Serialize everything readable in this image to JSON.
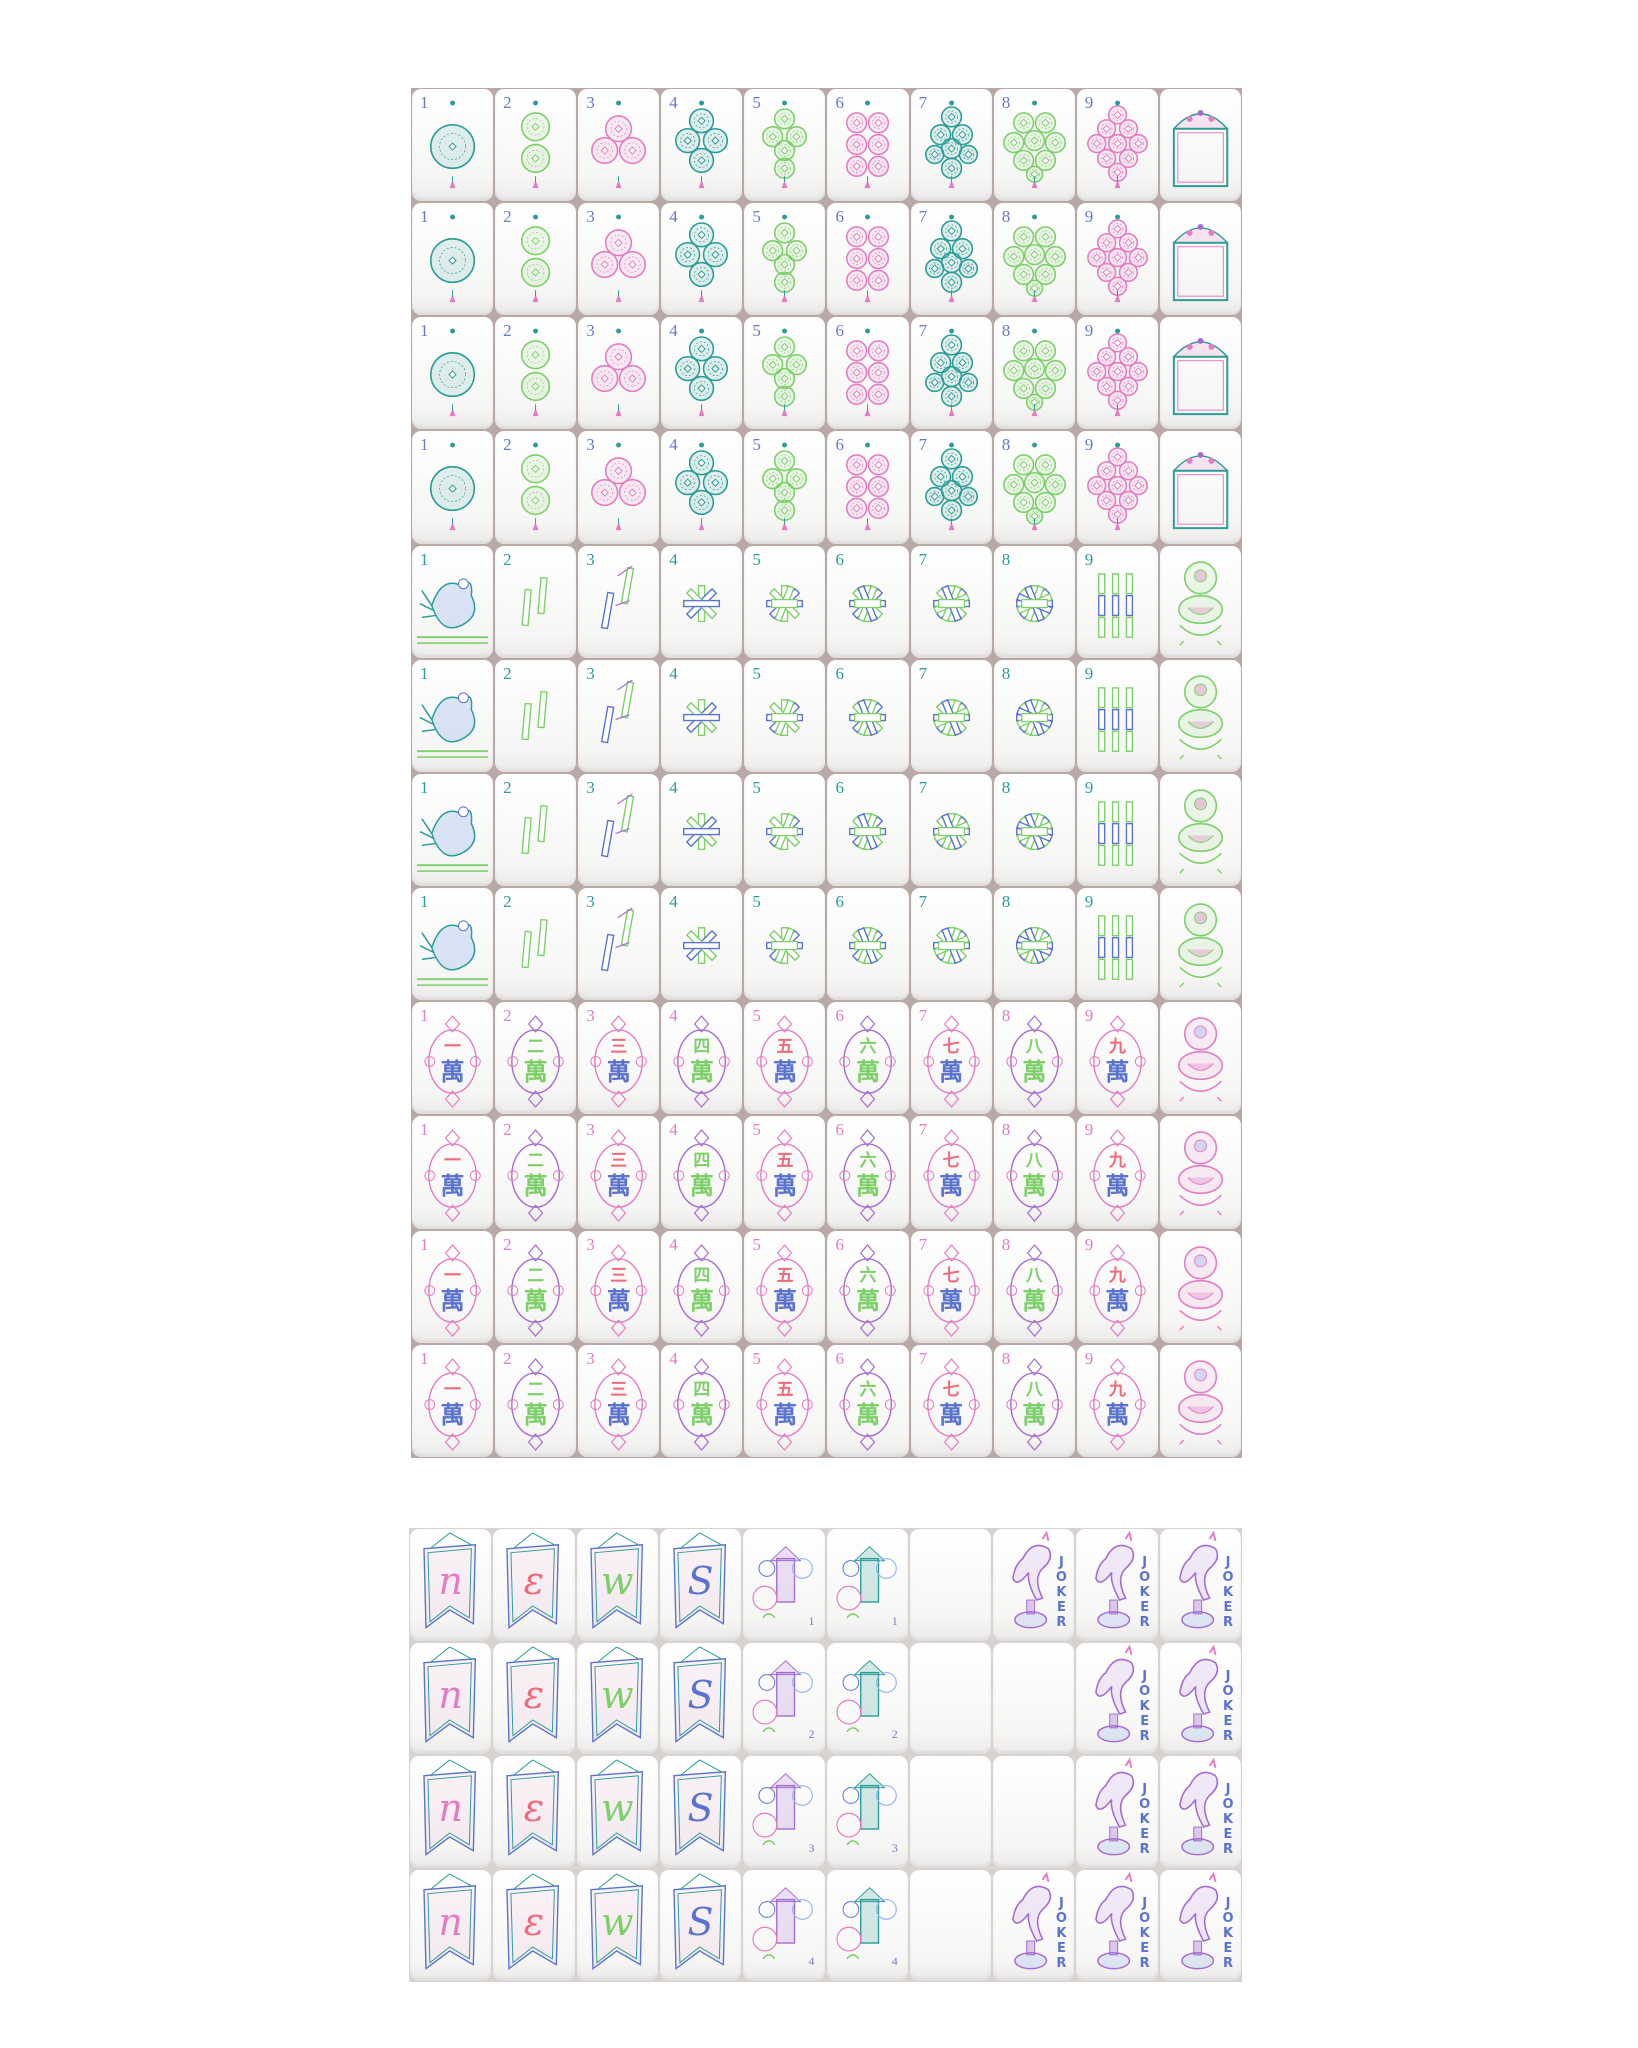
{
  "colors": {
    "teal": "#2a9d96",
    "green": "#7ccf69",
    "pink": "#e47cc2",
    "blue": "#5a72d0",
    "red": "#ef6a7a",
    "purple": "#a46cd0",
    "lightblue": "#9ab6ee"
  },
  "suits": {
    "dots": {
      "rows": 4,
      "numbers": [
        "1",
        "2",
        "3",
        "4",
        "5",
        "6",
        "7",
        "8",
        "9"
      ],
      "colors": [
        "teal",
        "green",
        "pink",
        "teal",
        "green",
        "pink",
        "teal",
        "green",
        "pink"
      ],
      "honor": "white-dragon-frame"
    },
    "bamboo": {
      "rows": 4,
      "numbers": [
        "1",
        "2",
        "3",
        "4",
        "5",
        "6",
        "7",
        "8",
        "9"
      ],
      "one_icon": "bird-icon",
      "honor": "green-lion"
    },
    "characters": {
      "rows": 4,
      "numbers": [
        "1",
        "2",
        "3",
        "4",
        "5",
        "6",
        "7",
        "8",
        "9"
      ],
      "numerals": [
        "一",
        "二",
        "三",
        "四",
        "五",
        "六",
        "七",
        "八",
        "九"
      ],
      "wan": "萬",
      "numeral_colors": [
        "red",
        "green",
        "red",
        "green",
        "red",
        "green",
        "red",
        "green",
        "red"
      ],
      "wan_colors": [
        "blue",
        "green",
        "blue",
        "green",
        "blue",
        "green",
        "blue",
        "green",
        "blue"
      ],
      "honor": "pink-lion"
    }
  },
  "bottom": {
    "winds": [
      {
        "letter": "n",
        "color": "pink"
      },
      {
        "letter": "ε",
        "color": "red"
      },
      {
        "letter": "w",
        "color": "green"
      },
      {
        "letter": "S",
        "color": "blue"
      }
    ],
    "flowers_a": [
      "1",
      "2",
      "3",
      "4"
    ],
    "flowers_b": [
      "1",
      "2",
      "3",
      "4"
    ],
    "joker_label": "JOKER",
    "col8": [
      "joker",
      "blank",
      "blank",
      "joker"
    ]
  }
}
